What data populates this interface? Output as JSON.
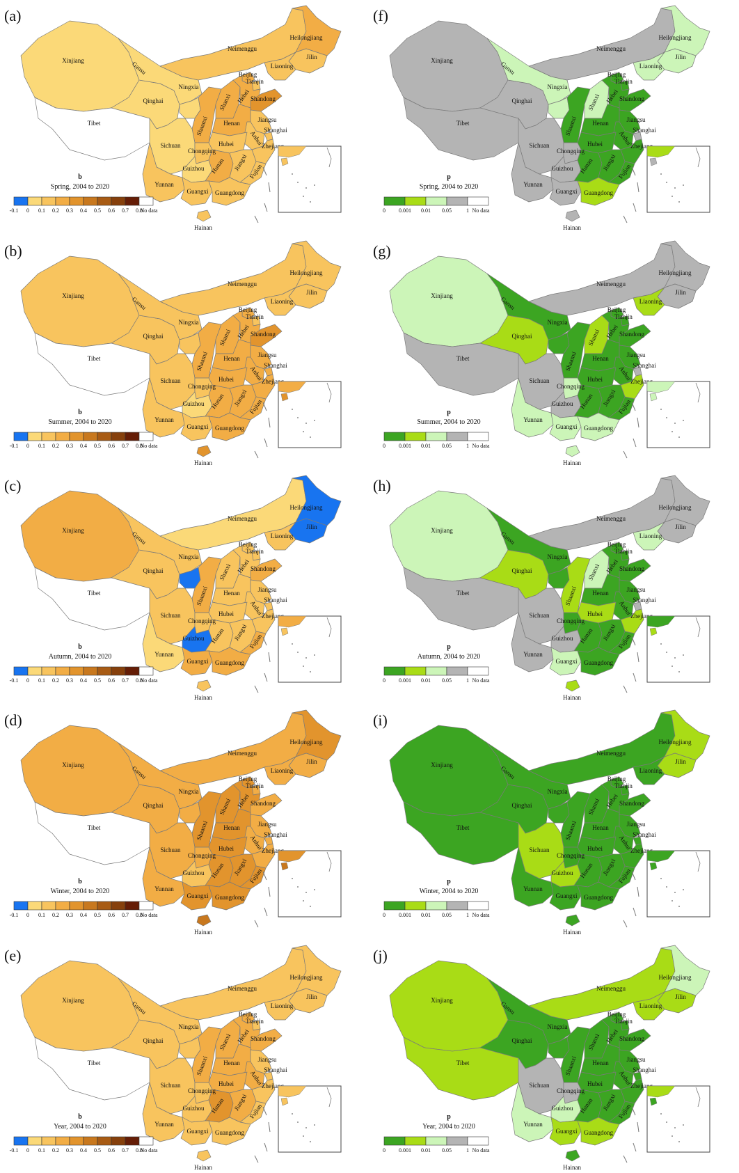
{
  "provinces": [
    {
      "id": "xinjiang",
      "label": "Xinjiang"
    },
    {
      "id": "tibet",
      "label": "Tibet"
    },
    {
      "id": "qinghai",
      "label": "Qinghai"
    },
    {
      "id": "gansu",
      "label": "Gansu"
    },
    {
      "id": "neimenggu",
      "label": "Neimenggu"
    },
    {
      "id": "heilongjiang",
      "label": "Heilongjiang"
    },
    {
      "id": "jilin",
      "label": "Jilin"
    },
    {
      "id": "liaoning",
      "label": "Liaoning"
    },
    {
      "id": "ningxia",
      "label": "Ningxia"
    },
    {
      "id": "shaanxi",
      "label": "Shaanxi"
    },
    {
      "id": "shanxi",
      "label": "Shanxi"
    },
    {
      "id": "beijing",
      "label": "Beijing"
    },
    {
      "id": "tianjin",
      "label": "Tianjin"
    },
    {
      "id": "hebei",
      "label": "Hebei"
    },
    {
      "id": "shandong",
      "label": "Shandong"
    },
    {
      "id": "henan",
      "label": "Henan"
    },
    {
      "id": "jiangsu",
      "label": "Jiangsu"
    },
    {
      "id": "anhui",
      "label": "Anhui"
    },
    {
      "id": "hubei",
      "label": "Hubei"
    },
    {
      "id": "shanghai",
      "label": "Shanghai"
    },
    {
      "id": "sichuan",
      "label": "Sichuan"
    },
    {
      "id": "chongqing",
      "label": "Chongqing"
    },
    {
      "id": "zhejiang",
      "label": "Zhejiang"
    },
    {
      "id": "guizhou",
      "label": "Guizhou"
    },
    {
      "id": "hunan",
      "label": "Hunan"
    },
    {
      "id": "jiangxi",
      "label": "Jiangxi"
    },
    {
      "id": "yunnan",
      "label": "Yunnan"
    },
    {
      "id": "fujian",
      "label": "Fujian"
    },
    {
      "id": "guangxi",
      "label": "Guangxi"
    },
    {
      "id": "guangdong",
      "label": "Guangdong"
    },
    {
      "id": "hainan",
      "label": "Hainan"
    }
  ],
  "legend_b": {
    "var": "b",
    "ticks": [
      "-0.1",
      "0",
      "0.1",
      "0.2",
      "0.3",
      "0.4",
      "0.5",
      "0.6",
      "0.7",
      "0.8"
    ],
    "colors": [
      "#1874f0",
      "#fbd978",
      "#f8c45e",
      "#f2ad45",
      "#e2942d",
      "#c8781e",
      "#a85b14",
      "#86400c",
      "#651d06"
    ],
    "nodata": "No data"
  },
  "legend_p": {
    "var": "p",
    "ticks": [
      "0",
      "0.001",
      "0.01",
      "0.05",
      "1"
    ],
    "colors": [
      "#3ca522",
      "#a9dc16",
      "#ccf5b8",
      "#b4b4b4"
    ],
    "nodata": "No data"
  },
  "panels": [
    {
      "letter": "(a)",
      "kind": "b",
      "period": "Spring, 2004 to 2020",
      "default": 1,
      "values": {
        "xinjiang": 1,
        "qinghai": 1,
        "gansu": 1,
        "ningxia": 1,
        "sichuan": 1,
        "yunnan": 2,
        "guizhou": 1,
        "guangxi": 2,
        "chongqing": 2,
        "neimenggu": 2,
        "heilongjiang": 3,
        "jilin": 2,
        "liaoning": 2,
        "shaanxi": 3,
        "shanxi": 3,
        "beijing": 3,
        "tianjin": 2,
        "hebei": 3,
        "shandong": 4,
        "henan": 3,
        "hubei": 2,
        "hunan": 3,
        "jiangxi": 2,
        "anhui": 2,
        "jiangsu": 2,
        "shanghai": 2,
        "zhejiang": 2,
        "fujian": 2,
        "guangdong": 2,
        "hainan": 2
      }
    },
    {
      "letter": "(b)",
      "kind": "b",
      "period": "Summer, 2004 to 2020",
      "default": 2,
      "values": {
        "xinjiang": 2,
        "qinghai": 2,
        "gansu": 2,
        "ningxia": 2,
        "neimenggu": 2,
        "heilongjiang": 2,
        "jilin": 2,
        "liaoning": 2,
        "sichuan": 2,
        "yunnan": 2,
        "guizhou": 1,
        "guangxi": 2,
        "chongqing": 2,
        "shaanxi": 3,
        "shanxi": 3,
        "beijing": 3,
        "tianjin": 2,
        "hebei": 3,
        "shandong": 4,
        "henan": 3,
        "hubei": 3,
        "hunan": 3,
        "jiangxi": 3,
        "anhui": 3,
        "jiangsu": 3,
        "shanghai": 3,
        "zhejiang": 3,
        "fujian": 3,
        "guangdong": 3,
        "hainan": 4
      }
    },
    {
      "letter": "(c)",
      "kind": "b",
      "period": "Autumn, 2004 to 2020",
      "default": 2,
      "values": {
        "xinjiang": 3,
        "qinghai": 2,
        "gansu": 2,
        "ningxia": 0,
        "neimenggu": 1,
        "heilongjiang": 0,
        "jilin": 0,
        "liaoning": 2,
        "sichuan": 2,
        "yunnan": 1,
        "guizhou": 0,
        "guangxi": 3,
        "chongqing": 2,
        "shaanxi": 3,
        "shanxi": 2,
        "beijing": 2,
        "tianjin": 2,
        "hebei": 2,
        "shandong": 3,
        "henan": 2,
        "hubei": 2,
        "hunan": 2,
        "jiangxi": 2,
        "anhui": 2,
        "jiangsu": 2,
        "shanghai": 2,
        "zhejiang": 2,
        "fujian": 3,
        "guangdong": 3,
        "hainan": 2
      }
    },
    {
      "letter": "(d)",
      "kind": "b",
      "period": "Winter, 2004 to 2020",
      "default": 3,
      "values": {
        "xinjiang": 3,
        "qinghai": 3,
        "gansu": 3,
        "ningxia": 3,
        "neimenggu": 3,
        "heilongjiang": 4,
        "jilin": 3,
        "liaoning": 3,
        "sichuan": 3,
        "yunnan": 3,
        "guizhou": 2,
        "guangxi": 4,
        "chongqing": 3,
        "shaanxi": 4,
        "shanxi": 4,
        "beijing": 4,
        "tianjin": 3,
        "hebei": 4,
        "shandong": 3,
        "henan": 4,
        "hubei": 4,
        "hunan": 4,
        "jiangxi": 4,
        "anhui": 3,
        "jiangsu": 3,
        "shanghai": 3,
        "zhejiang": 3,
        "fujian": 4,
        "guangdong": 4,
        "hainan": 5
      }
    },
    {
      "letter": "(e)",
      "kind": "b",
      "period": "Year, 2004 to 2020",
      "default": 2,
      "values": {
        "xinjiang": 2,
        "qinghai": 2,
        "gansu": 2,
        "ningxia": 2,
        "neimenggu": 2,
        "heilongjiang": 2,
        "jilin": 2,
        "liaoning": 2,
        "sichuan": 2,
        "yunnan": 2,
        "guizhou": 2,
        "guangxi": 2,
        "chongqing": 2,
        "shaanxi": 3,
        "shanxi": 3,
        "beijing": 3,
        "tianjin": 2,
        "hebei": 3,
        "shandong": 3,
        "henan": 3,
        "hubei": 3,
        "hunan": 4,
        "jiangxi": 3,
        "anhui": 3,
        "jiangsu": 2,
        "shanghai": 2,
        "zhejiang": 2,
        "fujian": 2,
        "guangdong": 2,
        "hainan": 2
      }
    },
    {
      "letter": "(f)",
      "kind": "p",
      "period": "Spring, 2004 to 2020",
      "default": 3,
      "values": {
        "xinjiang": 3,
        "tibet": 3,
        "qinghai": 3,
        "gansu": 2,
        "ningxia": 2,
        "neimenggu": 3,
        "heilongjiang": 2,
        "jilin": 2,
        "liaoning": 2,
        "sichuan": 3,
        "yunnan": 3,
        "guizhou": 3,
        "guangxi": 3,
        "chongqing": 3,
        "shaanxi": 0,
        "shanxi": 2,
        "beijing": 0,
        "tianjin": 0,
        "hebei": 0,
        "shandong": 0,
        "henan": 0,
        "hubei": 0,
        "hunan": 0,
        "jiangxi": 0,
        "anhui": 0,
        "jiangsu": 0,
        "shanghai": 3,
        "zhejiang": 0,
        "fujian": 0,
        "guangdong": 1,
        "hainan": 3
      }
    },
    {
      "letter": "(g)",
      "kind": "p",
      "period": "Summer, 2004 to 2020",
      "default": 3,
      "values": {
        "xinjiang": 2,
        "tibet": 3,
        "qinghai": 1,
        "gansu": 0,
        "ningxia": 0,
        "neimenggu": 3,
        "heilongjiang": 3,
        "jilin": 3,
        "liaoning": 1,
        "sichuan": 3,
        "yunnan": 2,
        "guizhou": 3,
        "guangxi": 2,
        "chongqing": 2,
        "shaanxi": 0,
        "shanxi": 1,
        "beijing": 0,
        "tianjin": 0,
        "hebei": 0,
        "shandong": 0,
        "henan": 0,
        "hubei": 0,
        "hunan": 0,
        "jiangxi": 0,
        "anhui": 0,
        "jiangsu": 0,
        "shanghai": 3,
        "zhejiang": 1,
        "fujian": 0,
        "guangdong": 2,
        "hainan": 2
      }
    },
    {
      "letter": "(h)",
      "kind": "p",
      "period": "Autumn, 2004 to 2020",
      "default": 3,
      "values": {
        "xinjiang": 2,
        "tibet": 3,
        "qinghai": 1,
        "gansu": 0,
        "ningxia": 0,
        "neimenggu": 3,
        "heilongjiang": 3,
        "jilin": 3,
        "liaoning": 2,
        "sichuan": 3,
        "yunnan": 3,
        "guizhou": 3,
        "guangxi": 2,
        "chongqing": 0,
        "shaanxi": 1,
        "shanxi": 2,
        "beijing": 0,
        "tianjin": 0,
        "hebei": 0,
        "shandong": 0,
        "henan": 0,
        "hubei": 1,
        "hunan": 0,
        "jiangxi": 0,
        "anhui": 0,
        "jiangsu": 0,
        "shanghai": 3,
        "zhejiang": 1,
        "fujian": 0,
        "guangdong": 0,
        "hainan": 1
      }
    },
    {
      "letter": "(i)",
      "kind": "p",
      "period": "Winter, 2004 to 2020",
      "default": 0,
      "values": {
        "xinjiang": 0,
        "tibet": 0,
        "qinghai": 0,
        "gansu": 0,
        "ningxia": 0,
        "neimenggu": 0,
        "heilongjiang": 1,
        "jilin": 1,
        "liaoning": 0,
        "sichuan": 1,
        "yunnan": 0,
        "guizhou": 1,
        "guangxi": 0,
        "chongqing": 0,
        "shaanxi": 0,
        "shanxi": 0,
        "beijing": 0,
        "tianjin": 0,
        "hebei": 0,
        "shandong": 0,
        "henan": 0,
        "hubei": 0,
        "hunan": 0,
        "jiangxi": 0,
        "anhui": 0,
        "jiangsu": 0,
        "shanghai": 0,
        "zhejiang": 0,
        "fujian": 0,
        "guangdong": 0,
        "hainan": 0
      }
    },
    {
      "letter": "(j)",
      "kind": "p",
      "period": "Year, 2004 to 2020",
      "default": 1,
      "values": {
        "xinjiang": 1,
        "tibet": 1,
        "qinghai": 0,
        "gansu": 0,
        "ningxia": 0,
        "neimenggu": 1,
        "heilongjiang": 2,
        "jilin": 1,
        "liaoning": 1,
        "sichuan": 3,
        "yunnan": 2,
        "guizhou": 2,
        "guangxi": 1,
        "chongqing": 3,
        "shaanxi": 0,
        "shanxi": 0,
        "beijing": 0,
        "tianjin": 0,
        "hebei": 0,
        "shandong": 0,
        "henan": 0,
        "hubei": 0,
        "hunan": 0,
        "jiangxi": 0,
        "anhui": 0,
        "jiangsu": 0,
        "shanghai": 0,
        "zhejiang": 0,
        "fujian": 0,
        "guangdong": 1,
        "hainan": 0
      }
    }
  ]
}
